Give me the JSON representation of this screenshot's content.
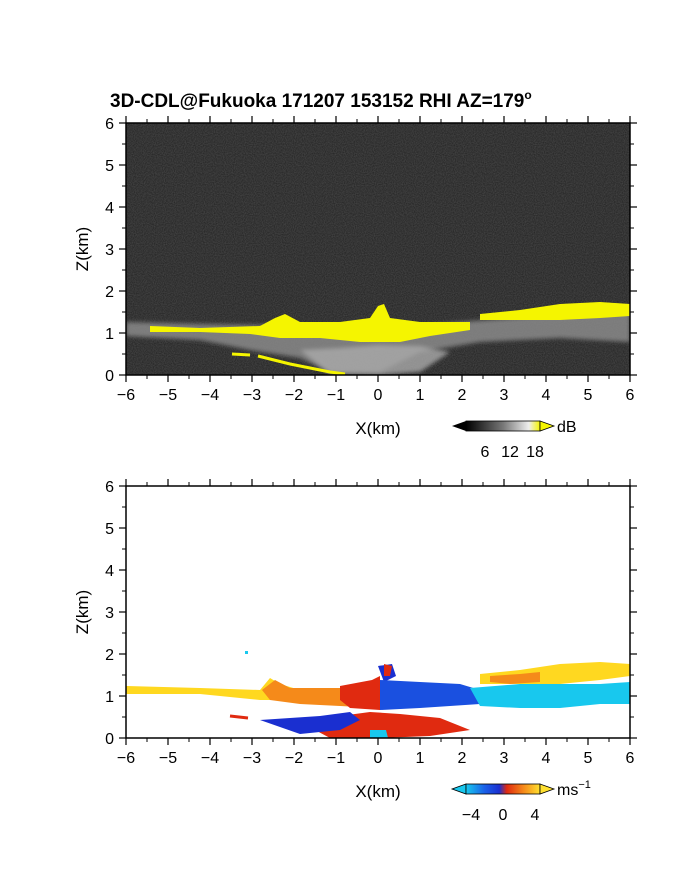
{
  "title": "3D-CDL@Fukuoka 171207 153152 RHI AZ=179",
  "title_superscript": "o",
  "colors": {
    "background": "#1e1e1e",
    "snr_highlight": "#f5f500",
    "velocity_blue": "#1a4fe0",
    "velocity_cyan": "#18c8ee",
    "velocity_red": "#e02a10",
    "velocity_orange": "#f58a1a",
    "velocity_yellow": "#ffd820"
  },
  "chart_data": [
    {
      "type": "heatmap",
      "name": "snr",
      "xlabel": "X(km)",
      "ylabel": "Z(km)",
      "xlim": [
        -6,
        6
      ],
      "ylim": [
        0,
        6
      ],
      "x_ticks": [
        "−6",
        "−5",
        "−4",
        "−3",
        "−2",
        "−1",
        "0",
        "1",
        "2",
        "3",
        "4",
        "5",
        "6"
      ],
      "y_ticks": [
        "0",
        "1",
        "2",
        "3",
        "4",
        "5",
        "6"
      ],
      "colorbar": {
        "unit": "dB",
        "tick_labels": [
          "6",
          "12",
          "18"
        ],
        "range": [
          0,
          20
        ],
        "colormap": "grayscale-to-yellow"
      },
      "features": [
        {
          "kind": "aerosol_layer",
          "x": [
            -6,
            6
          ],
          "z_top": 1.3,
          "z_bottom": 0.9
        },
        {
          "kind": "high_snr_band",
          "x": [
            -2.5,
            2.2
          ],
          "z": [
            0.9,
            1.3
          ]
        },
        {
          "kind": "high_snr_band",
          "x": [
            2.5,
            6
          ],
          "z": [
            1.3,
            1.7
          ]
        },
        {
          "kind": "cloud_top_bump",
          "x": [
            0,
            0.4
          ],
          "z": [
            1.3,
            1.6
          ]
        }
      ]
    },
    {
      "type": "heatmap",
      "name": "doppler_velocity",
      "xlabel": "X(km)",
      "ylabel": "Z(km)",
      "xlim": [
        -6,
        6
      ],
      "ylim": [
        0,
        6
      ],
      "x_ticks": [
        "−6",
        "−5",
        "−4",
        "−3",
        "−2",
        "−1",
        "0",
        "1",
        "2",
        "3",
        "4",
        "5",
        "6"
      ],
      "y_ticks": [
        "0",
        "1",
        "2",
        "3",
        "4",
        "5",
        "6"
      ],
      "colorbar": {
        "unit": "ms",
        "unit_superscript": "−1",
        "tick_labels": [
          "−4",
          "0",
          "4"
        ],
        "range": [
          -5,
          5
        ],
        "colormap": "cyan-blue-red-yellow"
      },
      "features": [
        {
          "kind": "positive_velocity_layer",
          "x": [
            -6,
            0
          ],
          "z": [
            0.9,
            1.3
          ],
          "v": 4
        },
        {
          "kind": "negative_velocity_layer",
          "x": [
            0,
            6
          ],
          "z": [
            0.8,
            1.3
          ],
          "v": -3
        },
        {
          "kind": "positive_velocity_layer",
          "x": [
            2.5,
            6
          ],
          "z": [
            1.3,
            1.7
          ],
          "v": 4
        }
      ]
    }
  ]
}
